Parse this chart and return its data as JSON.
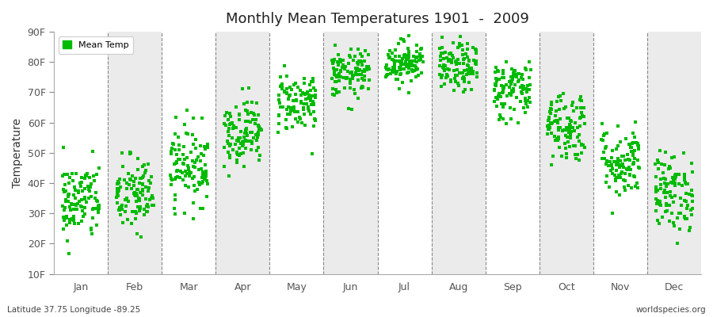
{
  "title": "Monthly Mean Temperatures 1901  -  2009",
  "ylabel": "Temperature",
  "xlabel_labels": [
    "Jan",
    "Feb",
    "Mar",
    "Apr",
    "May",
    "Jun",
    "Jul",
    "Aug",
    "Sep",
    "Oct",
    "Nov",
    "Dec"
  ],
  "ytick_labels": [
    "10F",
    "20F",
    "30F",
    "40F",
    "50F",
    "60F",
    "70F",
    "80F",
    "90F"
  ],
  "ytick_values": [
    10,
    20,
    30,
    40,
    50,
    60,
    70,
    80,
    90
  ],
  "ylim": [
    10,
    90
  ],
  "xlim": [
    0,
    12
  ],
  "dot_color": "#00BB00",
  "dot_size": 6,
  "background_color": "#FFFFFF",
  "band_color": "#EBEBEB",
  "legend_label": "Mean Temp",
  "footer_left": "Latitude 37.75 Longitude -89.25",
  "footer_right": "worldspecies.org",
  "monthly_means": [
    34,
    36,
    46,
    57,
    67,
    76,
    80,
    78,
    71,
    59,
    47,
    37
  ],
  "monthly_stds": [
    6.5,
    6.5,
    6.5,
    5.5,
    5.0,
    4.0,
    3.5,
    4.0,
    5.0,
    6.0,
    6.0,
    6.5
  ],
  "n_years": 109,
  "seed": 42
}
